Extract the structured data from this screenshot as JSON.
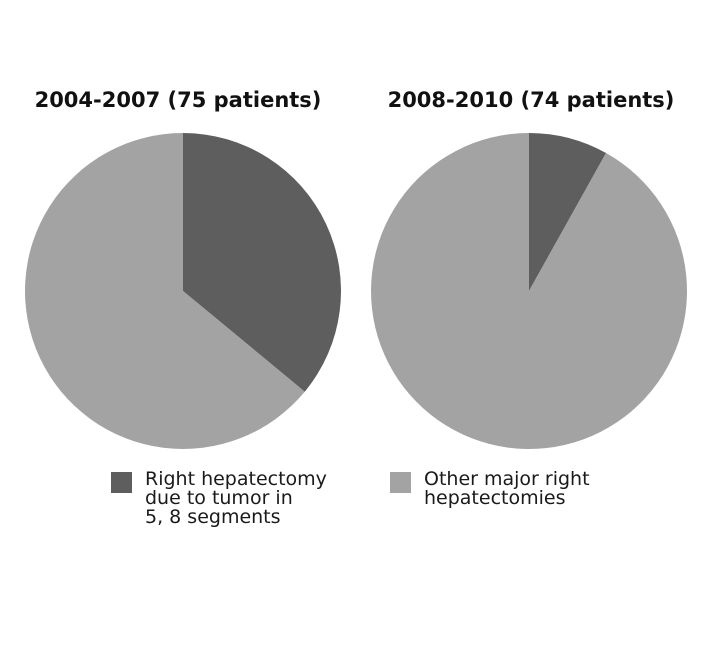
{
  "chart_data": [
    {
      "type": "pie",
      "title": "2004-2007 (75 patients)",
      "series": [
        {
          "name": "Right hepatectomy due to tumor in 5, 8 segments",
          "value": 27
        },
        {
          "name": "Other major right hepatectomies",
          "value": 48
        }
      ]
    },
    {
      "type": "pie",
      "title": "2008-2010 (74 patients)",
      "series": [
        {
          "name": "Right hepatectomy due to tumor in 5, 8 segments",
          "value": 6
        },
        {
          "name": "Other major right hepatectomies",
          "value": 68
        }
      ]
    }
  ],
  "legend": [
    {
      "label": "Right hepatectomy\ndue to tumor in\n5, 8 segments",
      "color": "#5e5e5e"
    },
    {
      "label": "Other major right\nhepatectomies",
      "color": "#a3a3a3"
    }
  ]
}
